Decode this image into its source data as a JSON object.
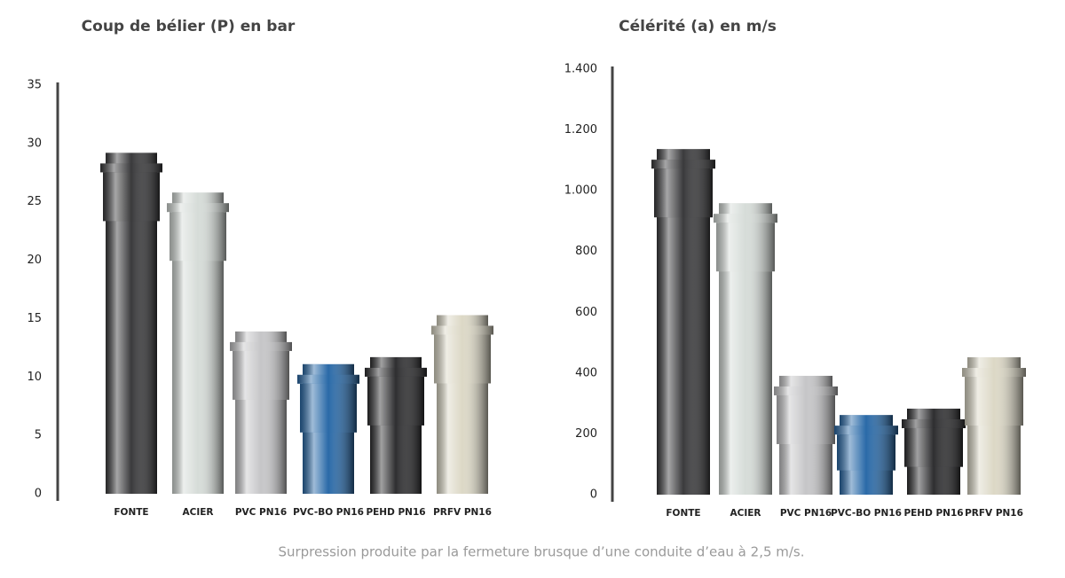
{
  "chart_data": [
    {
      "type": "bar",
      "title": "Coup de bélier (P) en bar",
      "categories": [
        "FONTE",
        "ACIER",
        "PVC PN16",
        "PVC-BO PN16",
        "PEHD PN16",
        "PRFV PN16"
      ],
      "values": [
        29.2,
        25.8,
        13.9,
        11.1,
        11.7,
        15.3
      ],
      "colors": [
        "#3a3a3c",
        "#d6dcd8",
        "#c6c6c8",
        "#2a6aa8",
        "#2e2e30",
        "#dcd8c6"
      ],
      "ylim": [
        0,
        35
      ],
      "yticks": [
        0,
        5,
        10,
        15,
        20,
        25,
        30,
        35
      ]
    },
    {
      "type": "bar",
      "title": "Célérité (a) en m/s",
      "categories": [
        "FONTE",
        "ACIER",
        "PVC PN16",
        "PVC-BO PN16",
        "PEHD PN16",
        "PRFV PN16"
      ],
      "values": [
        1137,
        959,
        391,
        262,
        283,
        452
      ],
      "colors": [
        "#3a3a3c",
        "#d6dcd8",
        "#c6c6c8",
        "#2a6aa8",
        "#2e2e30",
        "#dcd8c6"
      ],
      "ylim": [
        0,
        1400
      ],
      "yticks": [
        0,
        200,
        400,
        600,
        800,
        {
          "value": 1000,
          "label": "1.000"
        },
        {
          "value": 1200,
          "label": "1.200"
        },
        {
          "value": 1400,
          "label": "1.400"
        }
      ]
    }
  ],
  "caption": "Surpression produite par la fermeture brusque d’une conduite d’eau à 2,5 m/s."
}
